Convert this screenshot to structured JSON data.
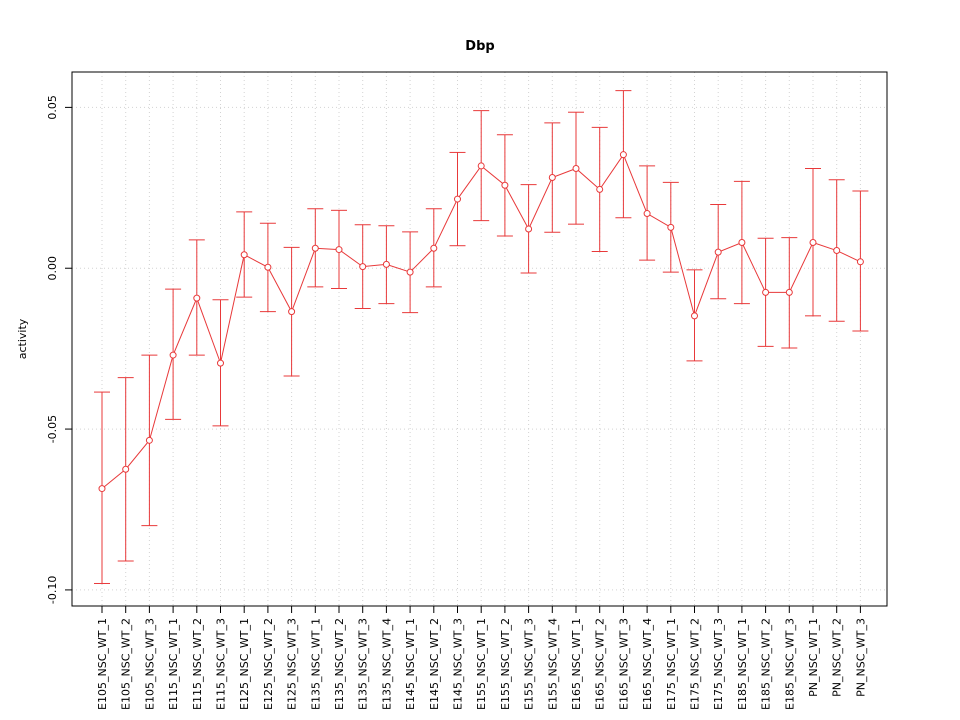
{
  "chart_data": {
    "type": "line",
    "title": "Dbp",
    "xlabel": "",
    "ylabel": "activity",
    "ylim": [
      -0.105,
      0.061
    ],
    "yticks": [
      -0.1,
      -0.05,
      0.0,
      0.05
    ],
    "ytick_labels": [
      "-0.10",
      "-0.05",
      "0.00",
      "0.05"
    ],
    "grid": true,
    "legend": "none",
    "series_color": "#e8393a",
    "grid_color": "#d3d3d3",
    "categories": [
      "E105_NSC_WT_1",
      "E105_NSC_WT_2",
      "E105_NSC_WT_3",
      "E115_NSC_WT_1",
      "E115_NSC_WT_2",
      "E115_NSC_WT_3",
      "E125_NSC_WT_1",
      "E125_NSC_WT_2",
      "E125_NSC_WT_3",
      "E135_NSC_WT_1",
      "E135_NSC_WT_2",
      "E135_NSC_WT_3",
      "E135_NSC_WT_4",
      "E145_NSC_WT_1",
      "E145_NSC_WT_2",
      "E145_NSC_WT_3",
      "E155_NSC_WT_1",
      "E155_NSC_WT_2",
      "E155_NSC_WT_3",
      "E155_NSC_WT_4",
      "E165_NSC_WT_1",
      "E165_NSC_WT_2",
      "E165_NSC_WT_3",
      "E165_NSC_WT_4",
      "E175_NSC_WT_1",
      "E175_NSC_WT_2",
      "E175_NSC_WT_3",
      "E185_NSC_WT_1",
      "E185_NSC_WT_2",
      "E185_NSC_WT_3",
      "PN_NSC_WT_1",
      "PN_NSC_WT_2",
      "PN_NSC_WT_3"
    ],
    "values": [
      -0.0685,
      -0.0625,
      -0.0535,
      -0.027,
      -0.0093,
      -0.0295,
      0.0042,
      0.0003,
      -0.0135,
      0.0062,
      0.0058,
      0.0005,
      0.0012,
      -0.0012,
      0.0062,
      0.0215,
      0.0318,
      0.0258,
      0.0122,
      0.0282,
      0.031,
      0.0245,
      0.0353,
      0.017,
      0.0127,
      -0.0148,
      0.005,
      0.008,
      -0.0075,
      -0.0075,
      0.008,
      0.0055,
      0.002
    ],
    "upper": [
      -0.0385,
      -0.034,
      -0.027,
      -0.0065,
      0.0088,
      -0.0098,
      0.0175,
      0.014,
      0.0065,
      0.0185,
      0.018,
      0.0135,
      0.0132,
      0.0113,
      0.0185,
      0.036,
      0.049,
      0.0415,
      0.026,
      0.0452,
      0.0485,
      0.0438,
      0.0552,
      0.0318,
      0.0267,
      -0.0005,
      0.0198,
      0.027,
      0.0093,
      0.0095,
      0.031,
      0.0275,
      0.024
    ],
    "lower": [
      -0.098,
      -0.091,
      -0.08,
      -0.047,
      -0.027,
      -0.049,
      -0.009,
      -0.0135,
      -0.0335,
      -0.0058,
      -0.0063,
      -0.0125,
      -0.011,
      -0.0138,
      -0.0058,
      0.007,
      0.0148,
      0.01,
      -0.0015,
      0.0112,
      0.0137,
      0.0052,
      0.0157,
      0.0025,
      -0.0012,
      -0.0288,
      -0.0095,
      -0.011,
      -0.0243,
      -0.0248,
      -0.0148,
      -0.0165,
      -0.0195
    ]
  }
}
